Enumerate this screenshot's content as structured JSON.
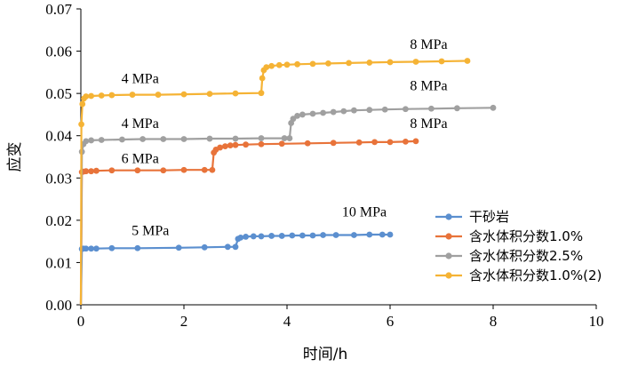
{
  "chart_data": {
    "type": "line",
    "title": "",
    "xlabel": "时间/h",
    "ylabel": "应变",
    "xlim": [
      0,
      10
    ],
    "ylim": [
      0,
      0.07
    ],
    "x_ticks": [
      "0",
      "2",
      "4",
      "6",
      "8",
      "10"
    ],
    "y_ticks": [
      "0.00",
      "0.01",
      "0.02",
      "0.03",
      "0.04",
      "0.05",
      "0.06",
      "0.07"
    ],
    "legend_position": "right",
    "series": [
      {
        "name": "干砂岩",
        "color": "#5B8FCF",
        "x": [
          0.0,
          0.02,
          0.05,
          0.1,
          0.2,
          0.3,
          0.6,
          1.1,
          1.9,
          2.4,
          2.85,
          3.0,
          3.05,
          3.1,
          3.2,
          3.35,
          3.5,
          3.7,
          3.9,
          4.1,
          4.3,
          4.5,
          4.7,
          4.95,
          5.3,
          5.6,
          5.85,
          6.0
        ],
        "y": [
          0.0,
          0.0132,
          0.0133,
          0.0133,
          0.0133,
          0.0133,
          0.0134,
          0.0134,
          0.0135,
          0.0136,
          0.0137,
          0.0137,
          0.0156,
          0.0159,
          0.0161,
          0.0162,
          0.0162,
          0.0163,
          0.0163,
          0.0164,
          0.0164,
          0.0164,
          0.0165,
          0.0165,
          0.0165,
          0.0166,
          0.0166,
          0.0166
        ]
      },
      {
        "name": "含水体积分数1.0%",
        "color": "#E8733A",
        "x": [
          0.0,
          0.02,
          0.05,
          0.1,
          0.2,
          0.3,
          0.6,
          1.1,
          1.6,
          2.0,
          2.4,
          2.55,
          2.58,
          2.62,
          2.7,
          2.8,
          2.9,
          3.0,
          3.2,
          3.5,
          3.9,
          4.4,
          4.9,
          5.4,
          5.7,
          6.0,
          6.3,
          6.5
        ],
        "y": [
          0.0,
          0.0314,
          0.0315,
          0.0316,
          0.0316,
          0.0317,
          0.0318,
          0.0318,
          0.0318,
          0.0319,
          0.0319,
          0.0319,
          0.036,
          0.0367,
          0.0372,
          0.0375,
          0.0377,
          0.0378,
          0.0379,
          0.038,
          0.0381,
          0.0382,
          0.0383,
          0.0384,
          0.0385,
          0.0385,
          0.0386,
          0.0387
        ]
      },
      {
        "name": "含水体积分数2.5%",
        "color": "#A0A0A0",
        "x": [
          0.0,
          0.02,
          0.05,
          0.1,
          0.2,
          0.4,
          0.8,
          1.2,
          1.6,
          2.0,
          2.5,
          3.0,
          3.5,
          3.95,
          4.05,
          4.08,
          4.12,
          4.2,
          4.3,
          4.5,
          4.7,
          4.9,
          5.1,
          5.3,
          5.6,
          5.9,
          6.3,
          6.8,
          7.3,
          8.0
        ],
        "y": [
          0.0,
          0.0362,
          0.038,
          0.0387,
          0.0389,
          0.039,
          0.0391,
          0.0392,
          0.0392,
          0.0392,
          0.0393,
          0.0393,
          0.0394,
          0.0394,
          0.0394,
          0.043,
          0.044,
          0.0447,
          0.045,
          0.0452,
          0.0454,
          0.0456,
          0.0458,
          0.046,
          0.0461,
          0.0462,
          0.0463,
          0.0464,
          0.0465,
          0.0466
        ]
      },
      {
        "name": "含水体积分数1.0%(2)",
        "color": "#F5B335",
        "x": [
          0.0,
          0.01,
          0.03,
          0.06,
          0.1,
          0.2,
          0.4,
          0.6,
          1.0,
          1.5,
          2.0,
          2.5,
          3.0,
          3.5,
          3.52,
          3.55,
          3.6,
          3.7,
          3.85,
          4.0,
          4.2,
          4.5,
          4.8,
          5.2,
          5.6,
          6.0,
          6.5,
          7.0,
          7.5
        ],
        "y": [
          0.0,
          0.0427,
          0.0475,
          0.0488,
          0.0493,
          0.0494,
          0.0495,
          0.0496,
          0.0497,
          0.0497,
          0.0498,
          0.0499,
          0.05,
          0.0501,
          0.0536,
          0.0555,
          0.0562,
          0.0565,
          0.0567,
          0.0568,
          0.0569,
          0.057,
          0.0571,
          0.0572,
          0.0573,
          0.0574,
          0.0575,
          0.0576,
          0.0577
        ]
      }
    ],
    "annotations": [
      {
        "text": "8 MPa",
        "x": 6.75,
        "y": 0.0605
      },
      {
        "text": "4 MPa",
        "x": 1.15,
        "y": 0.0525
      },
      {
        "text": "8 MPa",
        "x": 6.75,
        "y": 0.0508
      },
      {
        "text": "4 MPa",
        "x": 1.15,
        "y": 0.0418
      },
      {
        "text": "8 MPa",
        "x": 6.75,
        "y": 0.0418
      },
      {
        "text": "6 MPa",
        "x": 1.15,
        "y": 0.0335
      },
      {
        "text": "10 MPa",
        "x": 5.5,
        "y": 0.0209
      },
      {
        "text": "5 MPa",
        "x": 1.35,
        "y": 0.0165
      }
    ]
  }
}
